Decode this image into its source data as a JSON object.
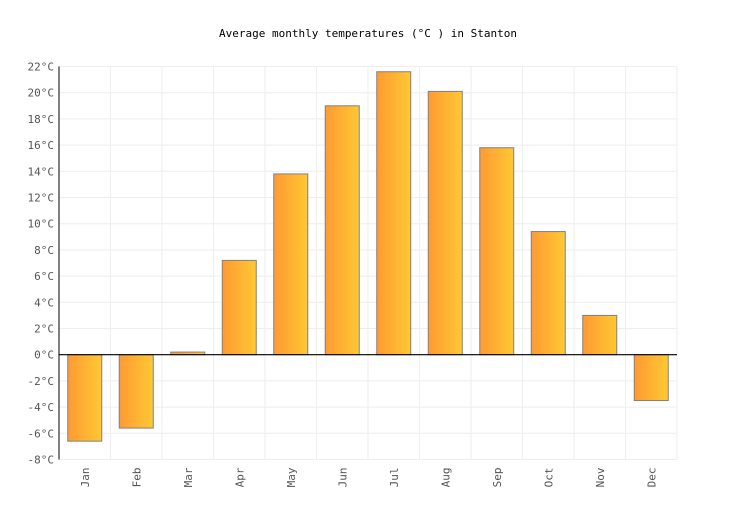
{
  "chart_data": {
    "type": "bar",
    "title": "Average monthly temperatures (°C ) in Stanton",
    "categories": [
      "Jan",
      "Feb",
      "Mar",
      "Apr",
      "May",
      "Jun",
      "Jul",
      "Aug",
      "Sep",
      "Oct",
      "Nov",
      "Dec"
    ],
    "values": [
      -6.6,
      -5.6,
      0.2,
      7.2,
      13.8,
      19.0,
      21.6,
      20.1,
      15.8,
      9.4,
      3.0,
      -3.5
    ],
    "unit": "°C",
    "ylim": [
      -8,
      22
    ],
    "yticks": [
      -8,
      -6,
      -4,
      -2,
      0,
      2,
      4,
      6,
      8,
      10,
      12,
      14,
      16,
      18,
      20,
      22
    ],
    "grid": true,
    "colors": {
      "bar_start": "#ff9a33",
      "bar_end": "#ffc833",
      "bar_stroke": "#808080",
      "grid": "#eeeeee"
    }
  }
}
